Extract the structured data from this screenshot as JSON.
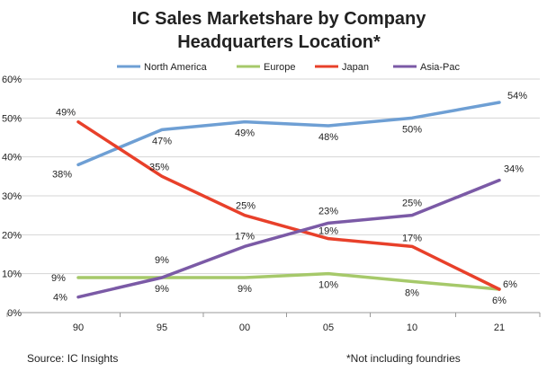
{
  "chart_data": {
    "type": "line",
    "title_line1": "IC Sales Marketshare by Company",
    "title_line2": "Headquarters Location*",
    "categories": [
      "90",
      "95",
      "00",
      "05",
      "10",
      "21"
    ],
    "ylim": [
      0,
      60
    ],
    "yticks": [
      "0%",
      "10%",
      "20%",
      "30%",
      "40%",
      "50%",
      "60%"
    ],
    "grid": true,
    "legend_position": "top",
    "series": [
      {
        "name": "North America",
        "color": "#6e9fd4",
        "values": [
          38,
          47,
          49,
          48,
          50,
          54
        ],
        "labels": [
          "38%",
          "47%",
          "49%",
          "48%",
          "50%",
          "54%"
        ]
      },
      {
        "name": "Europe",
        "color": "#a6c96a",
        "values": [
          9,
          9,
          9,
          10,
          8,
          6
        ],
        "labels": [
          "9%",
          "9%",
          "9%",
          "10%",
          "8%",
          "6%"
        ]
      },
      {
        "name": "Japan",
        "color": "#e8402a",
        "values": [
          49,
          35,
          25,
          19,
          17,
          6
        ],
        "labels": [
          "49%",
          "35%",
          "25%",
          "19%",
          "17%",
          "6%"
        ]
      },
      {
        "name": "Asia-Pac",
        "color": "#7b5aa6",
        "values": [
          4,
          9,
          17,
          23,
          25,
          34
        ],
        "labels": [
          "4%",
          "9%",
          "17%",
          "23%",
          "25%",
          "34%"
        ]
      }
    ],
    "source": "Source:  IC Insights",
    "footnote": "*Not including foundries"
  }
}
